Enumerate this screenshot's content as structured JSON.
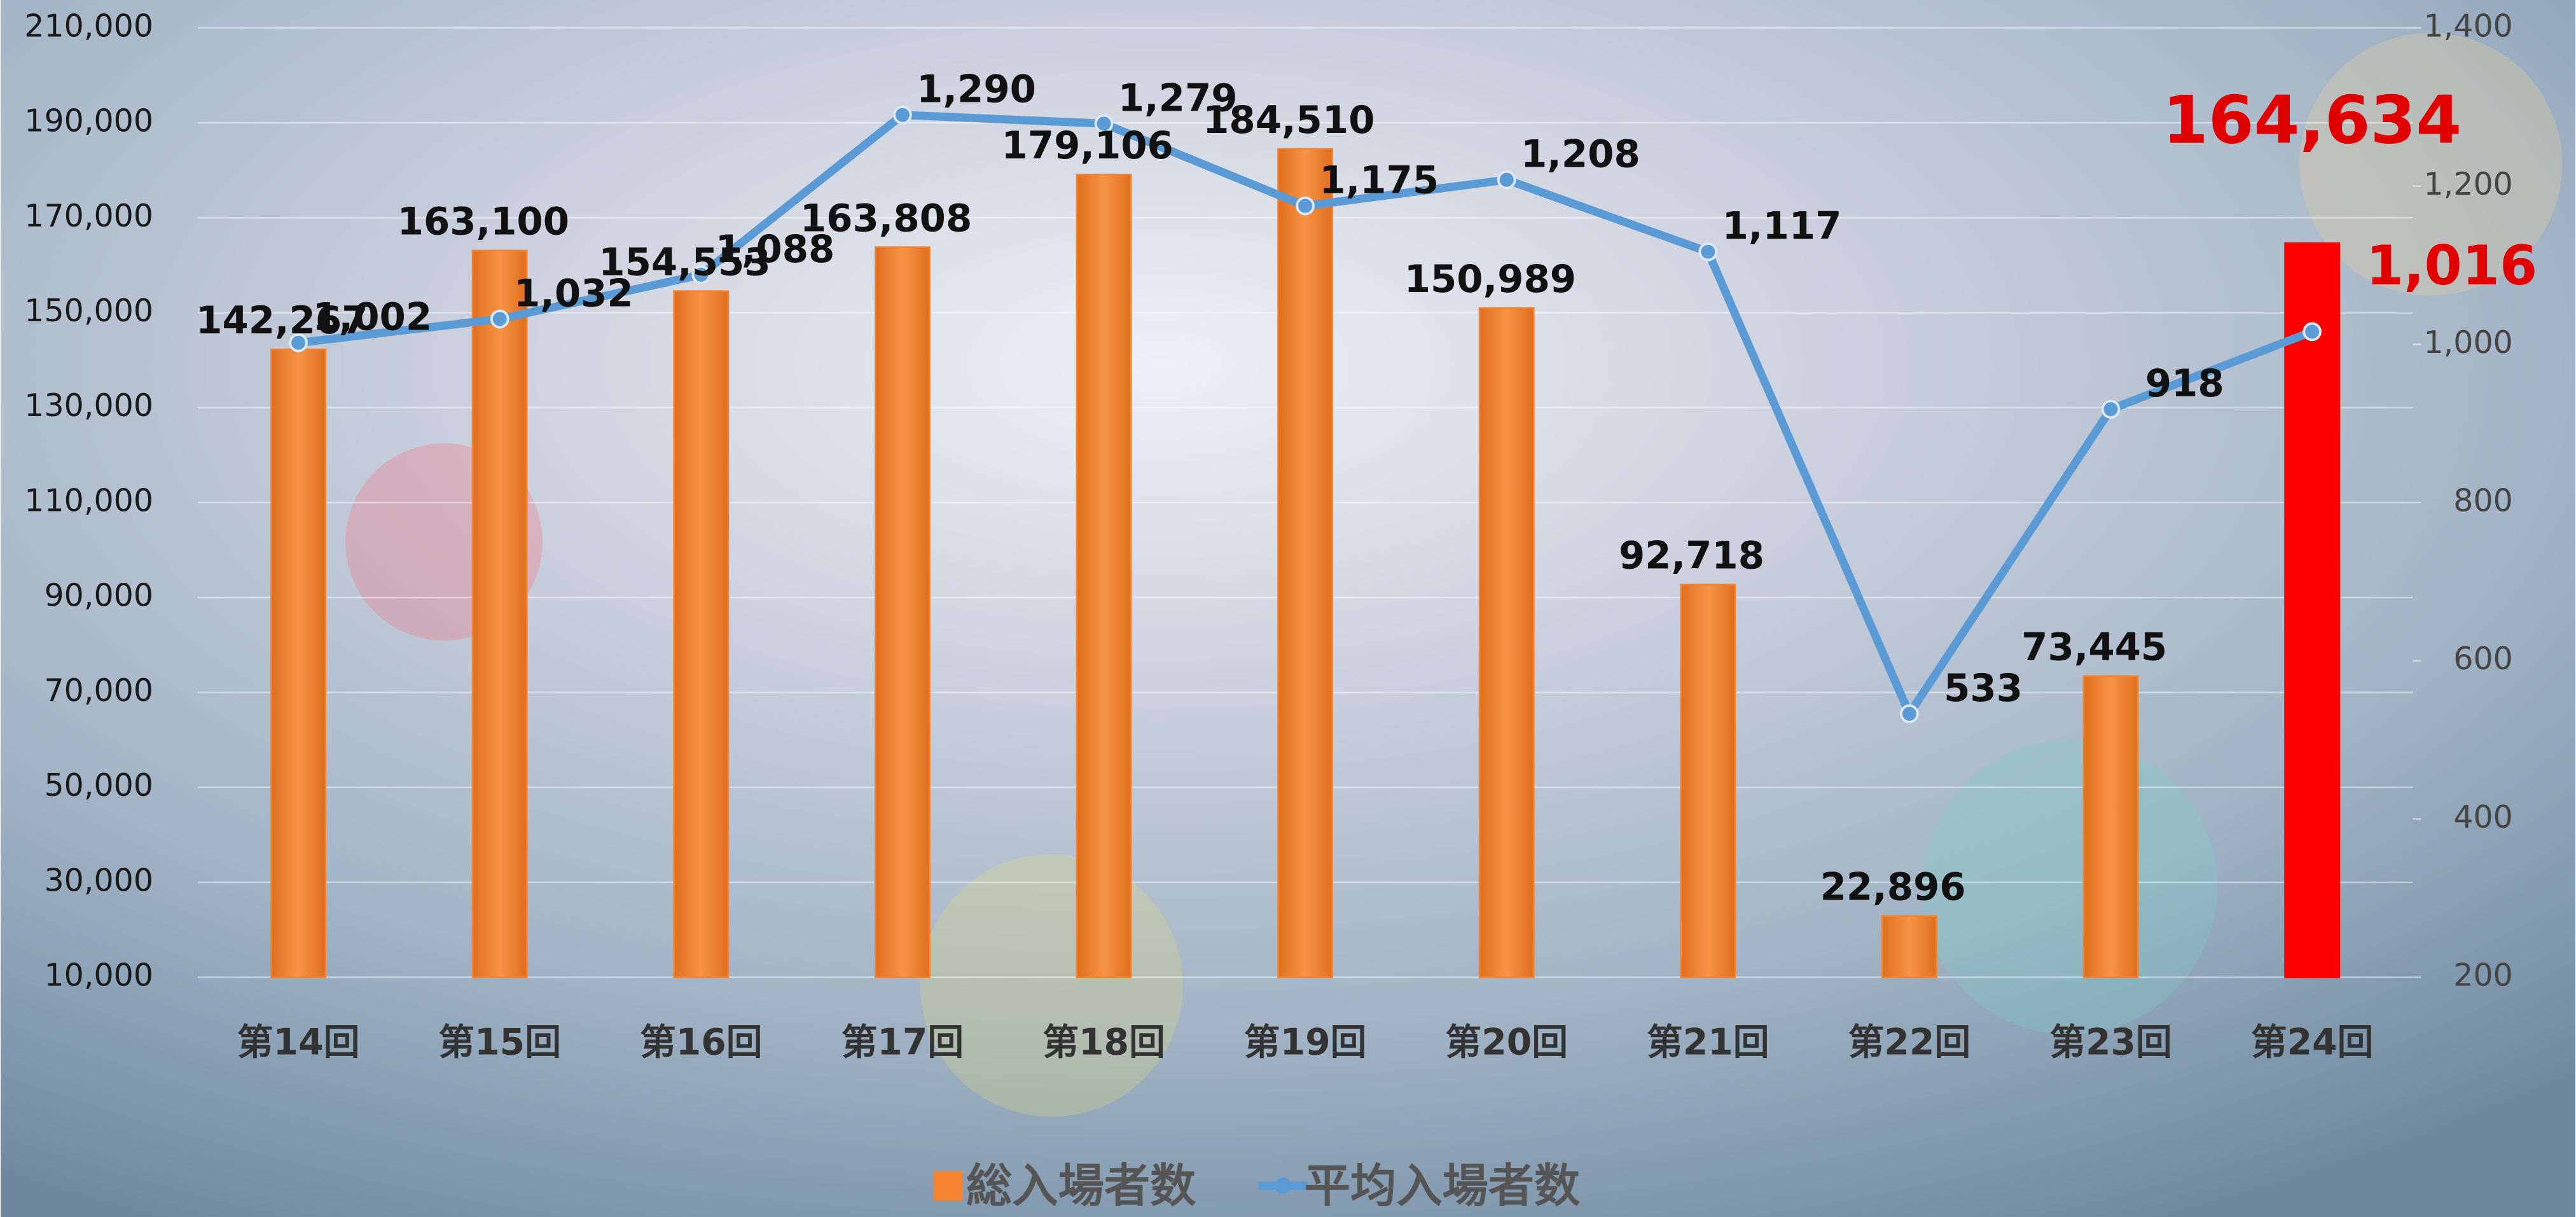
{
  "chart_data": {
    "type": "combo",
    "categories": [
      "第14回",
      "第15回",
      "第16回",
      "第17回",
      "第18回",
      "第19回",
      "第20回",
      "第21回",
      "第22回",
      "第23回",
      "第24回"
    ],
    "series": [
      {
        "name": "総入場者数",
        "type": "bar",
        "color": "#f5822f",
        "colors": [
          "#f5822f",
          "#f5822f",
          "#f5822f",
          "#f5822f",
          "#f5822f",
          "#f5822f",
          "#f5822f",
          "#f5822f",
          "#f5822f",
          "#f5822f",
          "#ff0000"
        ],
        "values": [
          142267,
          163100,
          154553,
          163808,
          179106,
          184510,
          150989,
          92718,
          22896,
          73445,
          164634
        ],
        "value_labels": [
          "142,267",
          "163,100",
          "154,553",
          "163,808",
          "179,106",
          "184,510",
          "150,989",
          "92,718",
          "22,896",
          "73,445",
          "164,634"
        ]
      },
      {
        "name": "平均入場者数",
        "type": "line",
        "axis": "y2",
        "color": "#5b9bd5",
        "values": [
          1002,
          1032,
          1088,
          1290,
          1279,
          1175,
          1208,
          1117,
          533,
          918,
          1016
        ],
        "value_labels": [
          "1,002",
          "1,032",
          "1,088",
          "1,290",
          "1,279",
          "1,175",
          "1,208",
          "1,117",
          "533",
          "918",
          "1,016"
        ]
      }
    ],
    "ylim": [
      10000,
      210000
    ],
    "yticks": [
      {
        "value": 10000,
        "label": "10,000"
      },
      {
        "value": 30000,
        "label": "30,000"
      },
      {
        "value": 50000,
        "label": "50,000"
      },
      {
        "value": 70000,
        "label": "70,000"
      },
      {
        "value": 90000,
        "label": "90,000"
      },
      {
        "value": 110000,
        "label": "110,000"
      },
      {
        "value": 130000,
        "label": "130,000"
      },
      {
        "value": 150000,
        "label": "150,000"
      },
      {
        "value": 170000,
        "label": "170,000"
      },
      {
        "value": 190000,
        "label": "190,000"
      },
      {
        "value": 210000,
        "label": "210,000"
      }
    ],
    "y2lim": [
      200,
      1400
    ],
    "y2ticks": [
      200,
      400,
      600,
      800,
      {
        "value": 1000,
        "label": "1,000"
      },
      {
        "value": 1200,
        "label": "1,200"
      },
      {
        "value": 1400,
        "label": "1,400"
      }
    ],
    "grid": true,
    "legend": "bottom"
  }
}
